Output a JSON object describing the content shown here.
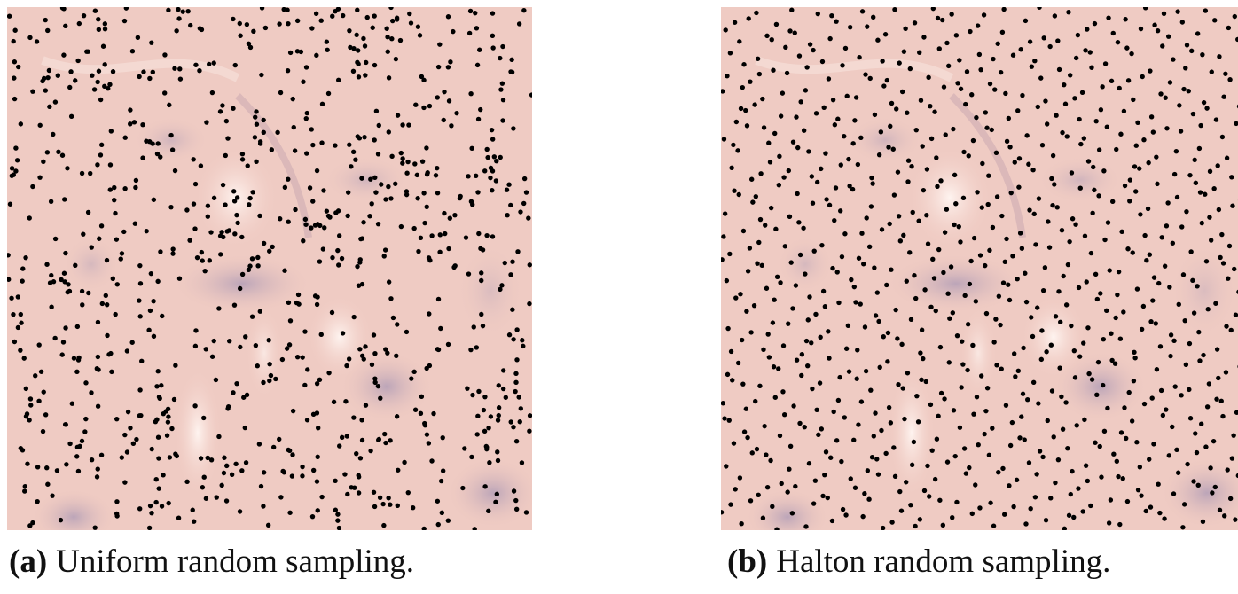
{
  "panels": [
    {
      "label": "(a)",
      "caption": "Uniform random sampling."
    },
    {
      "label": "(b)",
      "caption": "Halton random sampling."
    }
  ]
}
